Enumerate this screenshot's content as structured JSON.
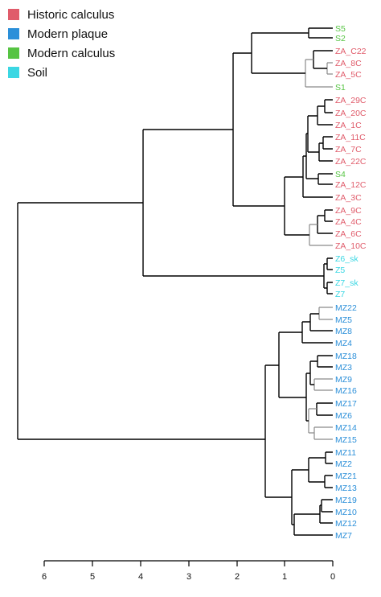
{
  "legend": [
    {
      "label": "Historic calculus",
      "color": "#e05c6b"
    },
    {
      "label": "Modern plaque",
      "color": "#2b8fd9"
    },
    {
      "label": "Modern calculus",
      "color": "#56c443"
    },
    {
      "label": "Soil",
      "color": "#3bd7e3"
    }
  ],
  "colors": {
    "historic": "#e05c6b",
    "plaque": "#2b8fd9",
    "modern_calculus": "#56c443",
    "soil": "#3bd7e3"
  },
  "axis": {
    "ticks": [
      "6",
      "5",
      "4",
      "3",
      "2",
      "1",
      "0"
    ]
  },
  "leaves": [
    {
      "label": "S5",
      "group": "modern_calculus"
    },
    {
      "label": "S2",
      "group": "modern_calculus"
    },
    {
      "label": "ZA_C22",
      "group": "historic"
    },
    {
      "label": "ZA_8C",
      "group": "historic"
    },
    {
      "label": "ZA_5C",
      "group": "historic"
    },
    {
      "label": "S1",
      "group": "modern_calculus"
    },
    {
      "label": "ZA_29C",
      "group": "historic"
    },
    {
      "label": "ZA_20C",
      "group": "historic"
    },
    {
      "label": "ZA_1C",
      "group": "historic"
    },
    {
      "label": "ZA_11C",
      "group": "historic"
    },
    {
      "label": "ZA_7C",
      "group": "historic"
    },
    {
      "label": "ZA_22C",
      "group": "historic"
    },
    {
      "label": "S4",
      "group": "modern_calculus"
    },
    {
      "label": "ZA_12C",
      "group": "historic"
    },
    {
      "label": "ZA_3C",
      "group": "historic"
    },
    {
      "label": "ZA_9C",
      "group": "historic"
    },
    {
      "label": "ZA_4C",
      "group": "historic"
    },
    {
      "label": "ZA_6C",
      "group": "historic"
    },
    {
      "label": "ZA_10C",
      "group": "historic"
    },
    {
      "label": "Z6_sk",
      "group": "soil"
    },
    {
      "label": "Z5",
      "group": "soil"
    },
    {
      "label": "Z7_sk",
      "group": "soil"
    },
    {
      "label": "Z7",
      "group": "soil"
    },
    {
      "label": "MZ22",
      "group": "plaque"
    },
    {
      "label": "MZ5",
      "group": "plaque"
    },
    {
      "label": "MZ8",
      "group": "plaque"
    },
    {
      "label": "MZ4",
      "group": "plaque"
    },
    {
      "label": "MZ18",
      "group": "plaque"
    },
    {
      "label": "MZ3",
      "group": "plaque"
    },
    {
      "label": "MZ9",
      "group": "plaque"
    },
    {
      "label": "MZ16",
      "group": "plaque"
    },
    {
      "label": "MZ17",
      "group": "plaque"
    },
    {
      "label": "MZ6",
      "group": "plaque"
    },
    {
      "label": "MZ14",
      "group": "plaque"
    },
    {
      "label": "MZ15",
      "group": "plaque"
    },
    {
      "label": "MZ11",
      "group": "plaque"
    },
    {
      "label": "MZ2",
      "group": "plaque"
    },
    {
      "label": "MZ21",
      "group": "plaque"
    },
    {
      "label": "MZ13",
      "group": "plaque"
    },
    {
      "label": "MZ19",
      "group": "plaque"
    },
    {
      "label": "MZ10",
      "group": "plaque"
    },
    {
      "label": "MZ12",
      "group": "plaque"
    },
    {
      "label": "MZ7",
      "group": "plaque"
    }
  ]
}
